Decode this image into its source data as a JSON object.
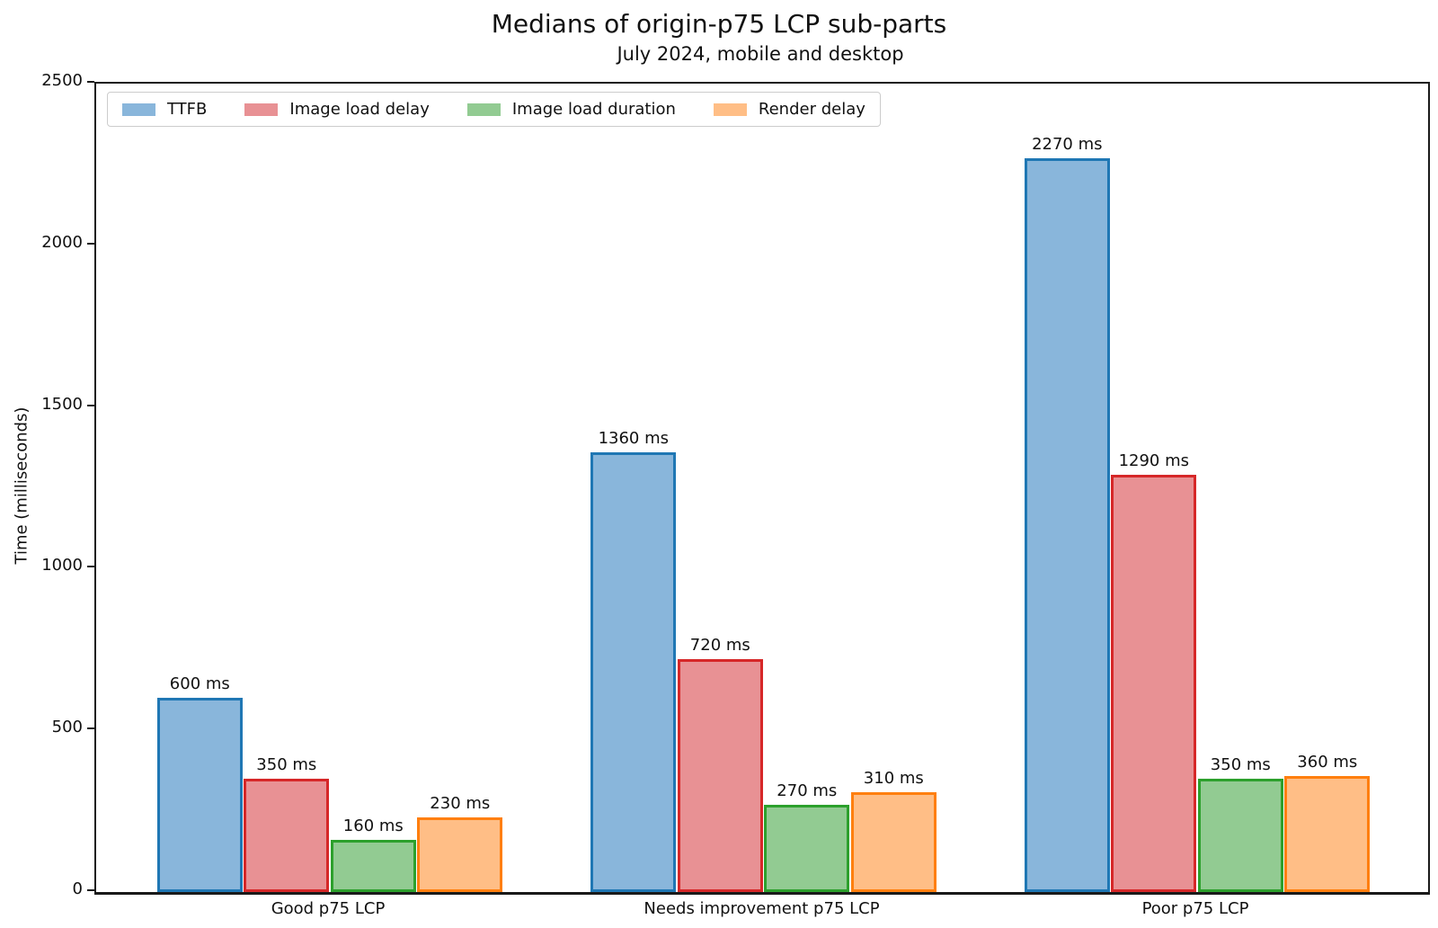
{
  "title": "Medians of origin-p75 LCP sub-parts",
  "subtitle": "July 2024, mobile and desktop",
  "chart_data": {
    "type": "bar",
    "categories": [
      "Good p75 LCP",
      "Needs improvement p75 LCP",
      "Poor p75 LCP"
    ],
    "series": [
      {
        "name": "TTFB",
        "values": [
          600,
          1360,
          2270
        ],
        "fill": "#89b6db",
        "edge": "#1f77b4"
      },
      {
        "name": "Image load delay",
        "values": [
          350,
          720,
          1290
        ],
        "fill": "#e89194",
        "edge": "#d62728"
      },
      {
        "name": "Image load duration",
        "values": [
          160,
          270,
          350
        ],
        "fill": "#92cb92",
        "edge": "#2ca02c"
      },
      {
        "name": "Render delay",
        "values": [
          230,
          310,
          360
        ],
        "fill": "#ffbe86",
        "edge": "#ff7f0e"
      }
    ],
    "value_label_suffix": " ms",
    "bar_labels": [
      [
        "600 ms",
        "1360 ms",
        "2270 ms"
      ],
      [
        "350 ms",
        "720 ms",
        "1290 ms"
      ],
      [
        "160 ms",
        "270 ms",
        "350 ms"
      ],
      [
        "230 ms",
        "310 ms",
        "360 ms"
      ]
    ],
    "xlabel": "",
    "ylabel": "Time (milliseconds)",
    "ylim": [
      0,
      2500
    ],
    "yticks": [
      "0",
      "500",
      "1000",
      "1500",
      "2000",
      "2500"
    ],
    "grid": false,
    "legend_position": "upper left",
    "axis_color": "#1a1a1a",
    "text_color": "#111111"
  }
}
